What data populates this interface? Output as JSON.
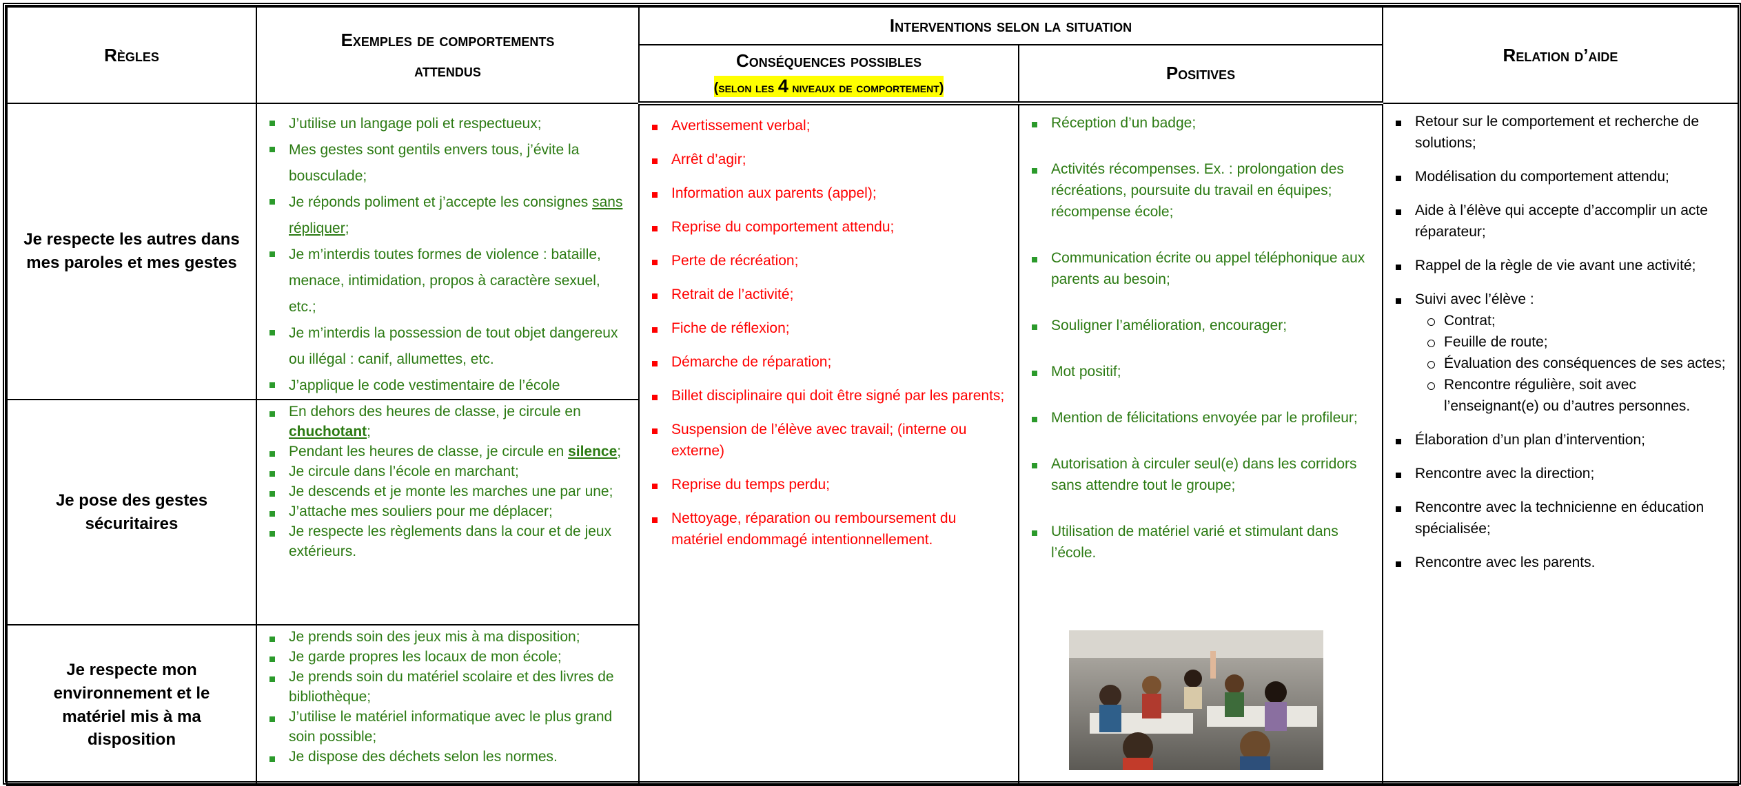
{
  "header": {
    "rules": "Règles",
    "examples": "Exemples de comportements attendus",
    "interventions": "Interventions selon la situation",
    "consequences": "Conséquences possibles",
    "consequences_note": [
      {
        "text": "(selon les "
      },
      {
        "text": "4",
        "style": "large"
      },
      {
        "text": " niveaux de comportement)"
      }
    ],
    "positives": "Positives",
    "help": "Relation d’aide"
  },
  "rows": [
    {
      "rule": "Je respecte les autres dans mes paroles et mes gestes",
      "examples": [
        "J’utilise un langage poli et respectueux;",
        "Mes gestes sont gentils envers tous, j’évite la bousculade;",
        [
          {
            "text": "Je réponds poliment et j’accepte les consignes "
          },
          {
            "text": "sans répliquer",
            "style": "underline"
          },
          {
            "text": ";"
          }
        ],
        "Je m’interdis toutes formes de violence : bataille, menace, intimidation, propos à caractère sexuel, etc.;",
        "Je m’interdis la possession de tout objet dangereux ou illégal : canif, allumettes, etc.",
        "J’applique le code vestimentaire de l’école"
      ]
    },
    {
      "rule": "Je pose des gestes sécuritaires",
      "examples": [
        [
          {
            "text": "En dehors des heures de classe, je circule en "
          },
          {
            "text": "chuchotant",
            "style": "bold-underline"
          },
          {
            "text": ";"
          }
        ],
        [
          {
            "text": "Pendant les heures de classe, je circule en "
          },
          {
            "text": "silence",
            "style": "bold-underline"
          },
          {
            "text": ";"
          }
        ],
        "Je circule dans l’école en marchant;",
        "Je descends et je monte les marches une par une;",
        "J’attache mes souliers pour me déplacer;",
        "Je respecte les règlements dans la cour et de jeux extérieurs."
      ]
    },
    {
      "rule": "Je respecte mon environnement et le matériel mis à ma disposition",
      "examples": [
        "Je prends soin des jeux mis à ma disposition;",
        "Je garde propres les locaux de mon école;",
        "Je prends soin du matériel scolaire et des livres de bibliothèque;",
        "J’utilise le matériel informatique avec le plus grand soin possible;",
        "Je dispose des déchets selon les normes."
      ]
    }
  ],
  "consequences": [
    "Avertissement verbal;",
    "Arrêt d’agir;",
    "Information aux parents (appel);",
    "Reprise du comportement attendu;",
    "Perte de récréation;",
    "Retrait de l’activité;",
    "Fiche de réflexion;",
    "Démarche de réparation;",
    "Billet disciplinaire qui doit être signé par les parents;",
    "Suspension de l’élève avec travail; (interne ou externe)",
    "Reprise du temps perdu;",
    "Nettoyage, réparation ou remboursement du matériel endommagé intentionnellement."
  ],
  "positives": [
    "Réception d’un badge;",
    "Activités récompenses.  Ex. : prolongation des récréations, poursuite du travail en équipes; récompense école;",
    "Communication écrite ou appel téléphonique aux parents au besoin;",
    "Souligner l’amélioration, encourager;",
    "Mot positif;",
    "Mention de félicitations envoyée par le profileur;",
    "Autorisation à circuler seul(e) dans les corridors sans attendre tout le groupe;",
    "Utilisation de matériel varié et stimulant dans l’école."
  ],
  "help": [
    "Retour sur le comportement et recherche de solutions;",
    "Modélisation du comportement attendu;",
    "Aide à l’élève qui accepte d’accomplir un acte réparateur;",
    "Rappel de la règle de vie avant une activité;",
    {
      "text": "Suivi avec l’élève :",
      "sub": [
        "Contrat;",
        "Feuille de route;",
        "Évaluation des conséquences de ses actes;",
        "Rencontre régulière, soit avec l’enseignant(e) ou d’autres personnes."
      ]
    },
    "Élaboration d’un plan d’intervention;",
    "Rencontre avec la direction;",
    "Rencontre avec la technicienne en éducation spécialisée;",
    "Rencontre avec les parents."
  ]
}
